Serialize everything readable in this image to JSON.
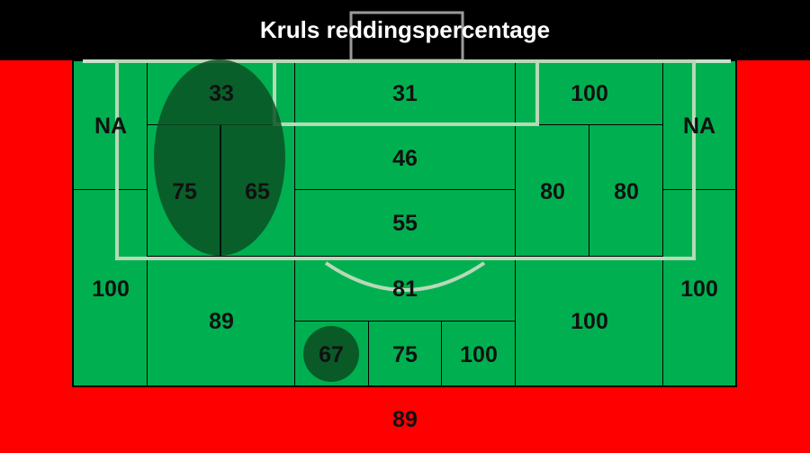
{
  "title": "Kruls reddingspercentage",
  "colors": {
    "outside": "#ff0000",
    "field": "#00b050",
    "highlight": "#0b4d22",
    "pitch_lines": "#b8d8b8",
    "title_bar": "#000000"
  },
  "zones": {
    "far_left_top": "NA",
    "far_left_bottom": "100",
    "left_top": "33",
    "left_mid_a": "75",
    "left_mid_b": "65",
    "left_bottom": "89",
    "center_1": "31",
    "center_2": "46",
    "center_3": "55",
    "center_4": "81",
    "center_bottom_a": "67",
    "center_bottom_b": "75",
    "center_bottom_c": "100",
    "right_top": "100",
    "right_mid_a": "80",
    "right_mid_b": "80",
    "right_bottom": "100",
    "far_right_top": "NA",
    "far_right_bottom": "100",
    "outside": "89"
  }
}
